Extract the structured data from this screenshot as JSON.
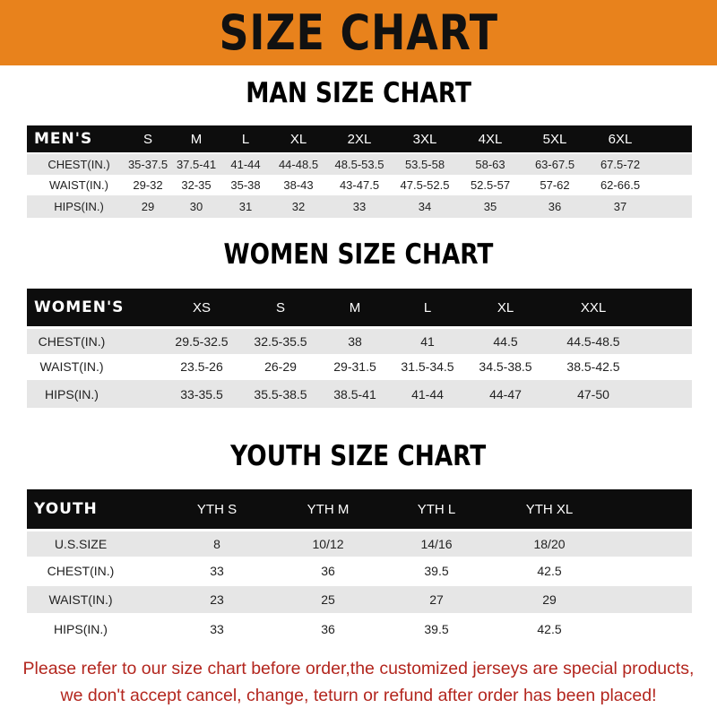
{
  "banner_title": "SIZE CHART",
  "colors": {
    "banner": "#E8821C",
    "header_row": "#0d0d0d",
    "stripe": "#e6e6e6",
    "notice_text": "#B3261E"
  },
  "men": {
    "title": "MAN SIZE CHART",
    "header": [
      "MEN'S",
      "S",
      "M",
      "L",
      "XL",
      "2XL",
      "3XL",
      "4XL",
      "5XL",
      "6XL"
    ],
    "rows": [
      [
        "CHEST(IN.)",
        "35-37.5",
        "37.5-41",
        "41-44",
        "44-48.5",
        "48.5-53.5",
        "53.5-58",
        "58-63",
        "63-67.5",
        "67.5-72"
      ],
      [
        "WAIST(IN.)",
        "29-32",
        "32-35",
        "35-38",
        "38-43",
        "43-47.5",
        "47.5-52.5",
        "52.5-57",
        "57-62",
        "62-66.5"
      ],
      [
        "HIPS(IN.)",
        "29",
        "30",
        "31",
        "32",
        "33",
        "34",
        "35",
        "36",
        "37"
      ]
    ]
  },
  "women": {
    "title": "WOMEN SIZE CHART",
    "header": [
      "WOMEN'S",
      "XS",
      "S",
      "M",
      "L",
      "XL",
      "XXL"
    ],
    "rows": [
      [
        "CHEST(IN.)",
        "29.5-32.5",
        "32.5-35.5",
        "38",
        "41",
        "44.5",
        "44.5-48.5"
      ],
      [
        "WAIST(IN.)",
        "23.5-26",
        "26-29",
        "29-31.5",
        "31.5-34.5",
        "34.5-38.5",
        "38.5-42.5"
      ],
      [
        "HIPS(IN.)",
        "33-35.5",
        "35.5-38.5",
        "38.5-41",
        "41-44",
        "44-47",
        "47-50"
      ]
    ]
  },
  "youth": {
    "title": "YOUTH SIZE CHART",
    "header": [
      "YOUTH",
      "YTH S",
      "YTH M",
      "YTH L",
      "YTH XL"
    ],
    "rows": [
      [
        "U.S.SIZE",
        "8",
        "10/12",
        "14/16",
        "18/20"
      ],
      [
        "CHEST(IN.)",
        "33",
        "36",
        "39.5",
        "42.5"
      ],
      [
        "WAIST(IN.)",
        "23",
        "25",
        "27",
        "29"
      ],
      [
        "HIPS(IN.)",
        "33",
        "36",
        "39.5",
        "42.5"
      ]
    ]
  },
  "notice": [
    "Please refer to our size chart before order,the customized jerseys are special products,",
    "we don't accept cancel, change, teturn or refund after order has been placed!"
  ]
}
